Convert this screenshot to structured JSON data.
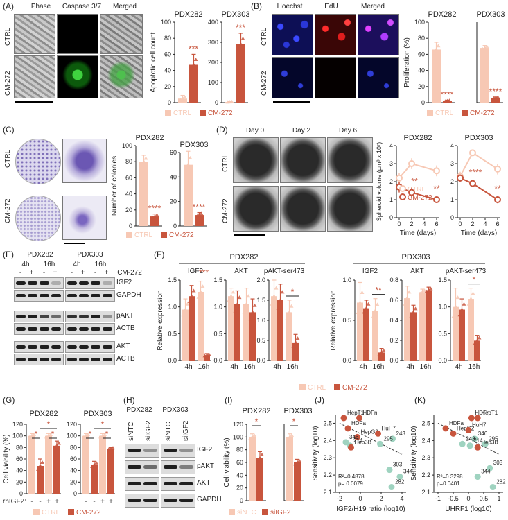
{
  "colors": {
    "ctrl": "#f7c8b4",
    "cm272": "#c8553d",
    "siNTC": "#f7c8b4",
    "siIGF2": "#c8553d",
    "resistant": "#9fd3c0"
  },
  "panels": {
    "A": {
      "label": "(A)",
      "cols": [
        "Phase",
        "Caspase 3/7",
        "Merged"
      ],
      "rows": [
        "CTRL",
        "CM-272"
      ]
    },
    "B": {
      "label": "(B)",
      "cols": [
        "Hoechst",
        "EdU",
        "Merged"
      ],
      "rows": [
        "CTRL",
        "CM-272"
      ]
    },
    "C": {
      "label": "(C)",
      "rows": [
        "CTRL",
        "CM-272"
      ]
    },
    "D": {
      "label": "(D)",
      "cols": [
        "Day 0",
        "Day 2",
        "Day 6"
      ],
      "rows": [
        "CTRL",
        "CM-272"
      ]
    },
    "E": {
      "label": "(E)",
      "groups": [
        "PDX282",
        "PDX303"
      ],
      "times": [
        "4h",
        "16h",
        "4h",
        "16h"
      ],
      "treat_label": "CM-272",
      "signs": [
        "-",
        "+",
        "-",
        "+",
        "-",
        "+",
        "-",
        "+"
      ],
      "proteins": [
        "IGF2",
        "GAPDH",
        "pAKT",
        "ACTB",
        "AKT",
        "ACTB"
      ]
    },
    "F": {
      "label": "(F)"
    },
    "G": {
      "label": "(G)",
      "rh_label": "rhIGF2:",
      "rh_signs": [
        "-",
        "-",
        "+",
        "+"
      ]
    },
    "H": {
      "label": "(H)",
      "groups": [
        "PDX282",
        "PDX303"
      ],
      "lanes": [
        "siNTC",
        "siIGF2",
        "siNTC",
        "siIGF2"
      ],
      "proteins": [
        "IGF2",
        "pAKT",
        "AKT",
        "GAPDH"
      ]
    },
    "I": {
      "label": "(I)"
    },
    "J": {
      "label": "(J)"
    },
    "K": {
      "label": "(K)"
    }
  },
  "legends": {
    "ctrl_cm": [
      "CTRL",
      "CM-272"
    ],
    "si": [
      "siNTC",
      "siIGF2"
    ]
  },
  "chart_data": [
    {
      "id": "A1",
      "type": "bar",
      "title": "PDX282",
      "ylabel": "Apoptotic cell count",
      "categories": [
        "CTRL",
        "CM-272"
      ],
      "values": [
        5,
        47
      ],
      "errors": [
        4,
        13
      ],
      "ylim": [
        0,
        100
      ],
      "yticks": [
        0,
        20,
        40,
        60,
        80,
        100
      ],
      "sig": "***"
    },
    {
      "id": "A2",
      "type": "bar",
      "title": "PDX303",
      "ylabel": "",
      "categories": [
        "CTRL",
        "CM-272"
      ],
      "values": [
        3,
        290
      ],
      "errors": [
        2,
        55
      ],
      "ylim": [
        0,
        400
      ],
      "yticks": [
        0,
        100,
        200,
        300,
        400
      ],
      "sig": "***"
    },
    {
      "id": "B1",
      "type": "bar",
      "title": "PDX282",
      "ylabel": "Proliferation (%)",
      "categories": [
        "CTRL",
        "CM-272"
      ],
      "values": [
        66,
        2
      ],
      "errors": [
        9,
        1
      ],
      "ylim": [
        0,
        100
      ],
      "yticks": [
        0,
        20,
        40,
        60,
        80,
        100
      ],
      "sig": "****"
    },
    {
      "id": "B2",
      "type": "bar",
      "title": "PDX303",
      "ylabel": "",
      "categories": [
        "CTRL",
        "CM-272"
      ],
      "values": [
        68,
        6
      ],
      "errors": [
        3,
        1
      ],
      "ylim": [
        0,
        100
      ],
      "yticks": [],
      "sig": "****"
    },
    {
      "id": "C1",
      "type": "bar",
      "title": "PDX282",
      "ylabel": "Number of colonies",
      "categories": [
        "CTRL",
        "CM-272"
      ],
      "values": [
        80,
        12
      ],
      "errors": [
        8,
        3
      ],
      "ylim": [
        0,
        100
      ],
      "yticks": [
        0,
        20,
        40,
        60,
        80,
        100
      ],
      "sig": "****"
    },
    {
      "id": "C2",
      "type": "bar",
      "title": "PDX303",
      "ylabel": "",
      "categories": [
        "CTRL",
        "CM-272"
      ],
      "values": [
        50,
        9
      ],
      "errors": [
        11,
        2
      ],
      "ylim": [
        0,
        60
      ],
      "yticks": [
        0,
        20,
        40,
        60
      ],
      "sig": "****"
    },
    {
      "id": "D1",
      "type": "line",
      "title": "PDX282",
      "ylabel": "Spheroid volume (µm³ x 10⁷)",
      "xlabel": "Time (days)",
      "x": [
        0,
        2,
        4,
        6
      ],
      "xticks": [
        0,
        2,
        4,
        6
      ],
      "ylim": [
        0,
        4
      ],
      "yticks": [
        0,
        1,
        2,
        3,
        4
      ],
      "series": [
        {
          "name": "CTRL",
          "values": [
            2.2,
            3.0,
            null,
            2.6
          ],
          "errors": [
            0.3,
            0.3,
            null,
            0.3
          ]
        },
        {
          "name": "CM-272",
          "values": [
            1.7,
            1.4,
            null,
            1.0
          ],
          "errors": [
            0.3,
            0.3,
            null,
            0.15
          ]
        }
      ],
      "annotations": [
        {
          "x": 2,
          "text": "**"
        },
        {
          "x": 6,
          "text": "**"
        }
      ]
    },
    {
      "id": "D2",
      "type": "line",
      "title": "PDX303",
      "ylabel": "",
      "xlabel": "Time (days)",
      "x": [
        0,
        2,
        4,
        6
      ],
      "xticks": [
        0,
        2,
        4,
        6
      ],
      "ylim": [
        0,
        4
      ],
      "yticks": [
        0,
        1,
        2,
        3,
        4
      ],
      "series": [
        {
          "name": "CTRL",
          "values": [
            2.3,
            3.6,
            null,
            2.7
          ],
          "errors": [
            0.25,
            0.1,
            null,
            0.3
          ]
        },
        {
          "name": "CM-272",
          "values": [
            2.2,
            1.9,
            null,
            1.0
          ],
          "errors": [
            0.2,
            0.05,
            null,
            0.2
          ]
        }
      ],
      "annotations": [
        {
          "x": 2,
          "text": "****"
        },
        {
          "x": 6,
          "text": "**"
        }
      ]
    },
    {
      "id": "F",
      "type": "bar",
      "group_titles": [
        "PDX282",
        "PDX303"
      ],
      "ylabel": "Relative expression",
      "categories": [
        "4h",
        "16h"
      ],
      "legend": [
        "CTRL",
        "CM-272"
      ],
      "subplots": [
        {
          "group": "PDX282",
          "title": "IGF2",
          "ylim": [
            0,
            1.5
          ],
          "yticks": [
            0,
            0.5,
            1.0,
            1.5
          ],
          "ctrl": [
            0.95,
            1.28
          ],
          "cm": [
            1.2,
            0.1
          ],
          "ctrl_err": [
            0.2,
            0.2
          ],
          "cm_err": [
            0.2,
            0.03
          ],
          "sig": "***"
        },
        {
          "group": "PDX282",
          "title": "AKT",
          "ylim": [
            0,
            1.5
          ],
          "yticks": [
            0,
            0.5,
            1.0,
            1.5
          ],
          "ctrl": [
            1.2,
            1.05
          ],
          "cm": [
            1.05,
            0.9
          ],
          "ctrl_err": [
            0.15,
            0.3
          ],
          "cm_err": [
            0.25,
            0.25
          ],
          "sig": ""
        },
        {
          "group": "PDX282",
          "title": "pAKT-ser473",
          "ylim": [
            0,
            2.0
          ],
          "yticks": [
            0,
            0.5,
            1.0,
            1.5,
            2.0
          ],
          "ctrl": [
            1.6,
            1.2
          ],
          "cm": [
            1.5,
            0.45
          ],
          "ctrl_err": [
            0.4,
            0.3
          ],
          "cm_err": [
            0.4,
            0.2
          ],
          "sig": "*"
        },
        {
          "group": "PDX303",
          "title": "IGF2",
          "ylim": [
            0,
            1.0
          ],
          "yticks": [
            0,
            0.5,
            1.0
          ],
          "ctrl": [
            0.72,
            0.62
          ],
          "cm": [
            0.65,
            0.1
          ],
          "ctrl_err": [
            0.25,
            0.15
          ],
          "cm_err": [
            0.1,
            0.05
          ],
          "sig": "**"
        },
        {
          "group": "PDX303",
          "title": "AKT",
          "ylim": [
            0,
            0.8
          ],
          "yticks": [
            0,
            0.2,
            0.4,
            0.6,
            0.8
          ],
          "ctrl": [
            0.62,
            0.68
          ],
          "cm": [
            0.48,
            0.7
          ],
          "ctrl_err": [
            0.12,
            0.03
          ],
          "cm_err": [
            0.07,
            0.03
          ],
          "sig": ""
        },
        {
          "group": "PDX303",
          "title": "pAKT-ser473",
          "ylim": [
            0,
            1.5
          ],
          "yticks": [
            0,
            0.5,
            1.0,
            1.5
          ],
          "ctrl": [
            1.0,
            1.15
          ],
          "cm": [
            0.95,
            0.37
          ],
          "ctrl_err": [
            0.35,
            0.2
          ],
          "cm_err": [
            0.2,
            0.1
          ],
          "sig": "*"
        }
      ]
    },
    {
      "id": "G1",
      "type": "bar",
      "title": "PDX282",
      "ylabel": "Cell viability (%)",
      "ylim": [
        0,
        120
      ],
      "yticks": [
        0,
        20,
        40,
        60,
        80,
        100,
        120
      ],
      "values": [
        100,
        48,
        100,
        83
      ],
      "errors": [
        4,
        12,
        4,
        8
      ],
      "colors": [
        "ctrl",
        "cm",
        "ctrl",
        "cm"
      ],
      "sig": [
        "*",
        "*",
        "*"
      ]
    },
    {
      "id": "G2",
      "type": "bar",
      "title": "PDX303",
      "ylabel": "",
      "ylim": [
        0,
        120
      ],
      "yticks": [
        0,
        20,
        40,
        60,
        80,
        100,
        120
      ],
      "values": [
        100,
        50,
        100,
        78
      ],
      "errors": [
        4,
        6,
        4,
        2
      ],
      "colors": [
        "ctrl",
        "cm",
        "ctrl",
        "cm"
      ],
      "sig": [
        "*",
        "*",
        "*"
      ]
    },
    {
      "id": "I",
      "type": "bar",
      "titles": [
        "PDX282",
        "PDX303"
      ],
      "ylabel": "Cell viability (%)",
      "ylim": [
        0,
        120
      ],
      "yticks": [
        0,
        20,
        40,
        60,
        80,
        100,
        120
      ],
      "values": [
        100,
        67,
        100,
        60
      ],
      "errors": [
        5,
        10,
        5,
        5
      ],
      "sig": [
        "*",
        "*"
      ]
    },
    {
      "id": "J",
      "type": "scatter",
      "xlabel": "IGF2/H19 ratio (log10)",
      "ylabel": "Sensitivity (log10)",
      "xlim": [
        -2,
        4
      ],
      "ylim": [
        2.1,
        2.5
      ],
      "xticks": [
        -2,
        0,
        2,
        4
      ],
      "yticks": [
        2.1,
        2.2,
        2.3,
        2.4,
        2.5
      ],
      "stats": [
        "R²=0.4878",
        "p= 0.0079"
      ],
      "points": [
        {
          "label": "HepT1",
          "x": -1.6,
          "y": 2.53,
          "group": "sensitive"
        },
        {
          "label": "HDFn",
          "x": -0.1,
          "y": 2.53,
          "group": "sensitive"
        },
        {
          "label": "HDFa",
          "x": -1.2,
          "y": 2.47,
          "group": "sensitive"
        },
        {
          "label": "HepG2",
          "x": -0.3,
          "y": 2.42,
          "group": "sensitive"
        },
        {
          "label": "HuH7",
          "x": 1.7,
          "y": 2.44,
          "group": "sensitive"
        },
        {
          "label": "346",
          "x": -1.4,
          "y": 2.39,
          "group": "resistant"
        },
        {
          "label": "214",
          "x": -1.0,
          "y": 2.37,
          "group": "resistant"
        },
        {
          "label": "Hep3B",
          "x": -0.9,
          "y": 2.36,
          "group": "sensitive"
        },
        {
          "label": "243",
          "x": 3.1,
          "y": 2.41,
          "group": "resistant"
        },
        {
          "label": "295",
          "x": 1.9,
          "y": 2.38,
          "group": "resistant"
        },
        {
          "label": "303",
          "x": 2.8,
          "y": 2.23,
          "group": "resistant"
        },
        {
          "label": "344",
          "x": 3.8,
          "y": 2.19,
          "group": "resistant"
        },
        {
          "label": "282",
          "x": 3.0,
          "y": 2.13,
          "group": "resistant"
        }
      ]
    },
    {
      "id": "K",
      "type": "scatter",
      "xlabel": "UHRF1 (log10)",
      "ylabel": "Sensitivity (log10)",
      "xlim": [
        -1,
        1
      ],
      "ylim": [
        2.1,
        2.5
      ],
      "xticks": [
        -1,
        -0.5,
        0,
        0.5,
        1
      ],
      "yticks": [
        2.1,
        2.2,
        2.3,
        2.4,
        2.5
      ],
      "stats": [
        "R²=0.3298",
        "p=0.0401"
      ],
      "points": [
        {
          "label": "HDFa",
          "x": -0.75,
          "y": 2.47,
          "group": "sensitive"
        },
        {
          "label": "HDFn",
          "x": 0.1,
          "y": 2.53,
          "group": "sensitive"
        },
        {
          "label": "HepT1",
          "x": 0.3,
          "y": 2.53,
          "group": "sensitive"
        },
        {
          "label": "HepG2",
          "x": -0.5,
          "y": 2.44,
          "group": "sensitive"
        },
        {
          "label": "HuH7",
          "x": 0.0,
          "y": 2.46,
          "group": "sensitive"
        },
        {
          "label": "346",
          "x": 0.2,
          "y": 2.41,
          "group": "resistant"
        },
        {
          "label": "295",
          "x": 0.55,
          "y": 2.38,
          "group": "resistant"
        },
        {
          "label": "243",
          "x": -0.2,
          "y": 2.38,
          "group": "resistant"
        },
        {
          "label": "214",
          "x": 0.05,
          "y": 2.37,
          "group": "resistant"
        },
        {
          "label": "Hep3B",
          "x": 0.3,
          "y": 2.36,
          "group": "sensitive"
        },
        {
          "label": "303",
          "x": 0.7,
          "y": 2.24,
          "group": "resistant"
        },
        {
          "label": "344",
          "x": 0.3,
          "y": 2.19,
          "group": "resistant"
        },
        {
          "label": "282",
          "x": 0.8,
          "y": 2.13,
          "group": "resistant"
        }
      ]
    }
  ]
}
